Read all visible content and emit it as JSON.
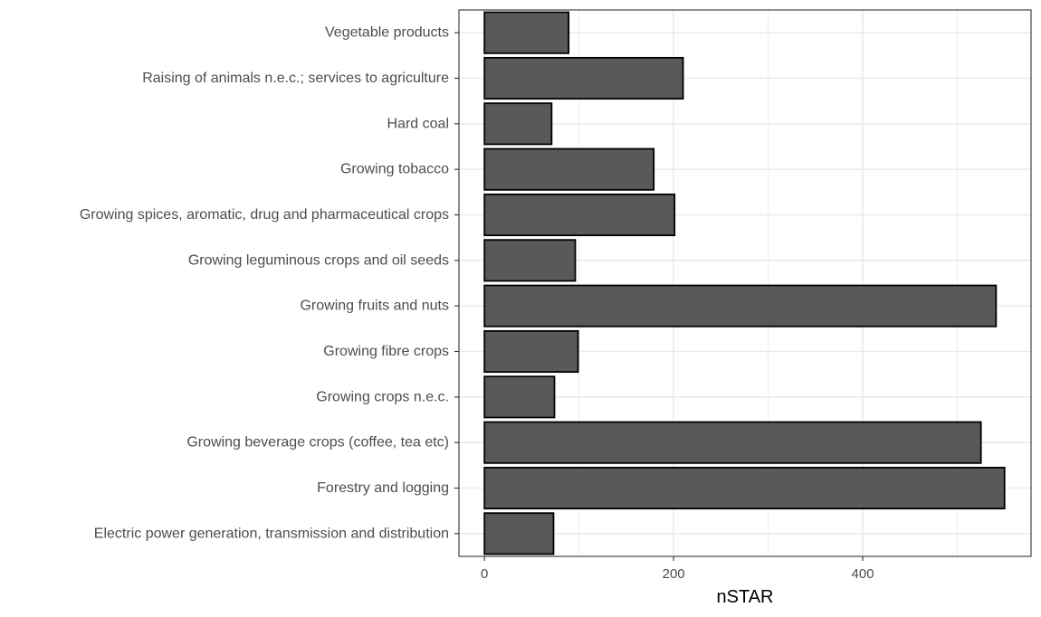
{
  "chart_data": {
    "type": "bar",
    "orientation": "horizontal",
    "categories": [
      "Vegetable products",
      "Raising of animals n.e.c.; services to agriculture",
      "Hard coal",
      "Growing tobacco",
      "Growing spices, aromatic, drug and pharmaceutical crops",
      "Growing leguminous crops and oil seeds",
      "Growing fruits and nuts",
      "Growing fibre crops",
      "Growing crops n.e.c.",
      "Growing beverage crops (coffee, tea etc)",
      "Forestry and logging",
      "Electric power generation, transmission and distribution"
    ],
    "values": [
      89,
      210,
      71,
      179,
      201,
      96,
      541,
      99,
      74,
      525,
      550,
      73
    ],
    "title": "",
    "xlabel": "nSTAR",
    "ylabel": "",
    "xlim": [
      -27,
      578
    ],
    "x_ticks": [
      0,
      200,
      400
    ],
    "x_minor_ticks": [
      100,
      300,
      500
    ],
    "grid": true,
    "colors": {
      "bar_fill": "#595959",
      "bar_stroke": "#000000",
      "grid": "#ebebeb",
      "panel_border": "#333333",
      "text": "#4d4d4d"
    }
  }
}
